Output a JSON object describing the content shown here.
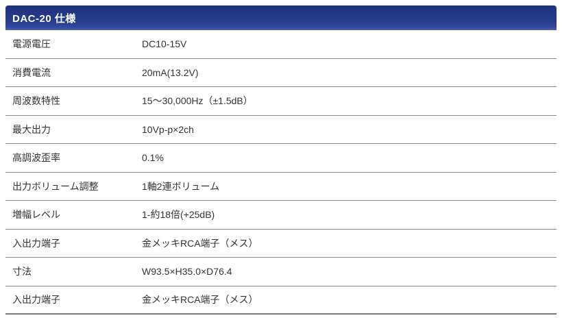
{
  "page": {
    "section_title": "DAC-20 仕様"
  },
  "table": {
    "rows": [
      {
        "label": "電源電圧",
        "value": "DC10-15V"
      },
      {
        "label": "消費電流",
        "value": "20mA(13.2V)"
      },
      {
        "label": "周波数特性",
        "value": "15～30,000Hz（±1.5dB）"
      },
      {
        "label": "最大出力",
        "value": "10Vp-p×2ch"
      },
      {
        "label": "高調波歪率",
        "value": "0.1%"
      },
      {
        "label": "出力ボリューム調整",
        "value": "1軸2連ボリューム"
      },
      {
        "label": "増幅レベル",
        "value": "1-約18倍(+25dB)"
      },
      {
        "label": "入出力端子",
        "value": "金メッキRCA端子（メス）"
      },
      {
        "label": "寸法",
        "value": "W93.5×H35.0×D76.4"
      },
      {
        "label": "入出力端子",
        "value": "金メッキRCA端子（メス）"
      }
    ]
  },
  "colors": {
    "header_bg": "#283e8e",
    "header_bg_bottom": "#4a63ad",
    "header_text": "#ffffff",
    "row_border": "#8c8c8c",
    "body_text": "#333333"
  }
}
